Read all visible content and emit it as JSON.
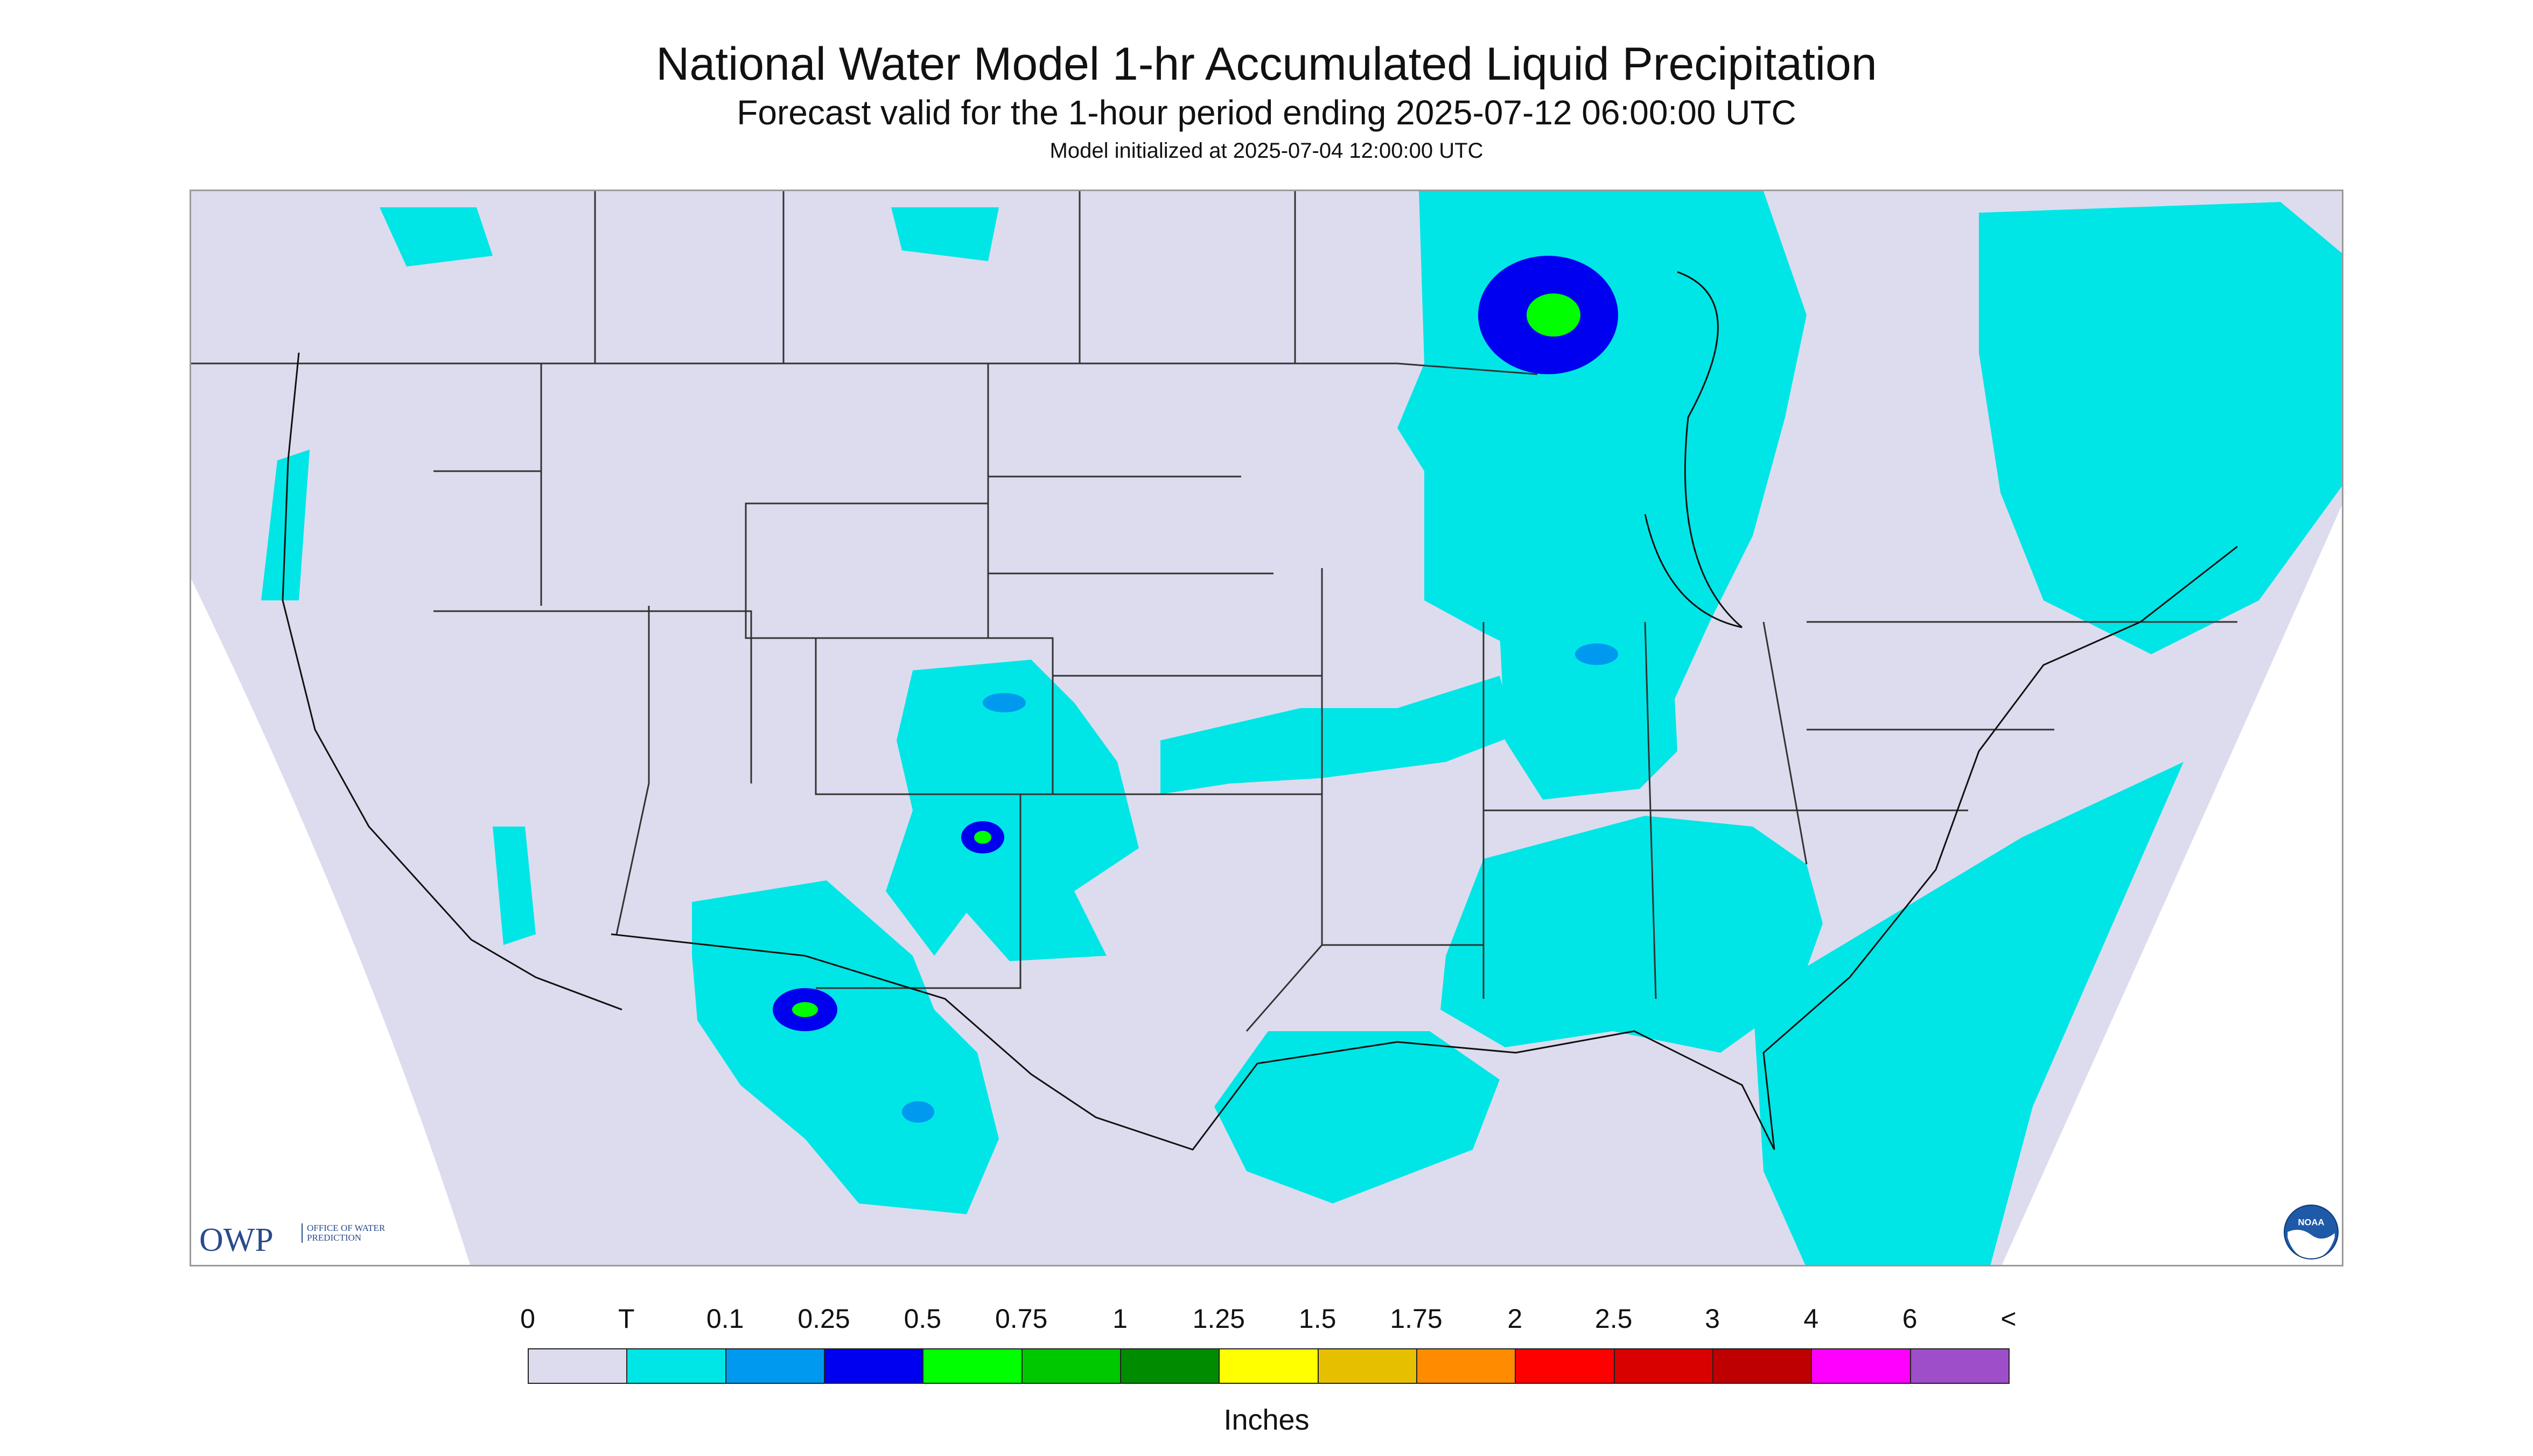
{
  "header": {
    "title": "National Water Model 1-hr Accumulated Liquid Precipitation",
    "subtitle": "Forecast valid for the 1-hour period ending 2025-07-12 06:00:00 UTC",
    "init": "Model initialized at 2025-07-04 12:00:00 UTC"
  },
  "map": {
    "background_color": "#dcdcee",
    "outside_domain_color": "#ffffff",
    "boundary_color": "#333333",
    "precip_colors": {
      "trace": "#00e6e6",
      "light": "#0099f0",
      "medium": "#0000f0",
      "heavy": "#00ff00",
      "heavier": "#00c800"
    }
  },
  "logos": {
    "owp": "OWP",
    "owp_sub": "OFFICE OF WATER PREDICTION",
    "noaa": "NOAA"
  },
  "legend": {
    "labels": [
      "0",
      "T",
      "0.1",
      "0.25",
      "0.5",
      "0.75",
      "1",
      "1.25",
      "1.5",
      "1.75",
      "2",
      "2.5",
      "3",
      "4",
      "6",
      "<"
    ],
    "colors": [
      "#dcdcee",
      "#00e6e6",
      "#0099f0",
      "#0000f0",
      "#00ff00",
      "#00c800",
      "#008c00",
      "#ffff00",
      "#e6c000",
      "#ff8c00",
      "#ff0000",
      "#d90000",
      "#be0000",
      "#ff00ff",
      "#9e4ec8"
    ],
    "units": "Inches"
  }
}
